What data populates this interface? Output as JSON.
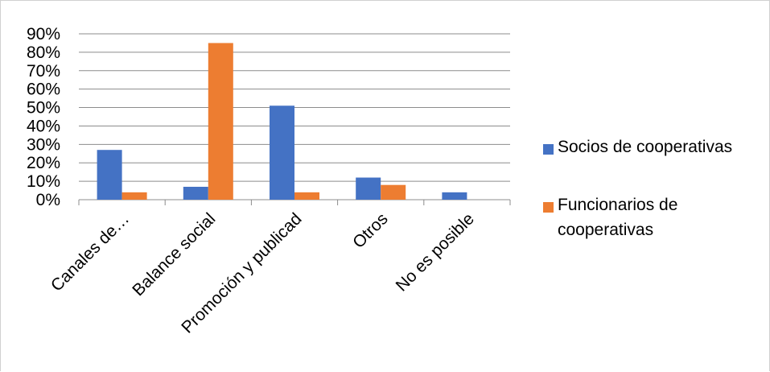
{
  "chart_data": {
    "type": "bar",
    "categories": [
      "Canales de…",
      "Balance social",
      "Promoción y publicad",
      "Otros",
      "No es posible"
    ],
    "series": [
      {
        "name": "Socios de cooperativas",
        "values": [
          27,
          7,
          51,
          12,
          4
        ]
      },
      {
        "name": "Funcionarios de cooperativas",
        "values": [
          4,
          85,
          4,
          8,
          0
        ]
      }
    ],
    "y_ticks": [
      "0%",
      "10%",
      "20%",
      "30%",
      "40%",
      "50%",
      "60%",
      "70%",
      "80%",
      "90%"
    ],
    "ylim": [
      0,
      90
    ],
    "y_unit": "%",
    "grid": true,
    "legend_position": "right",
    "colors": [
      "#4472C4",
      "#ED7D31"
    ],
    "gridline_color": "#8c8c8c",
    "axis_color": "#8c8c8c"
  }
}
